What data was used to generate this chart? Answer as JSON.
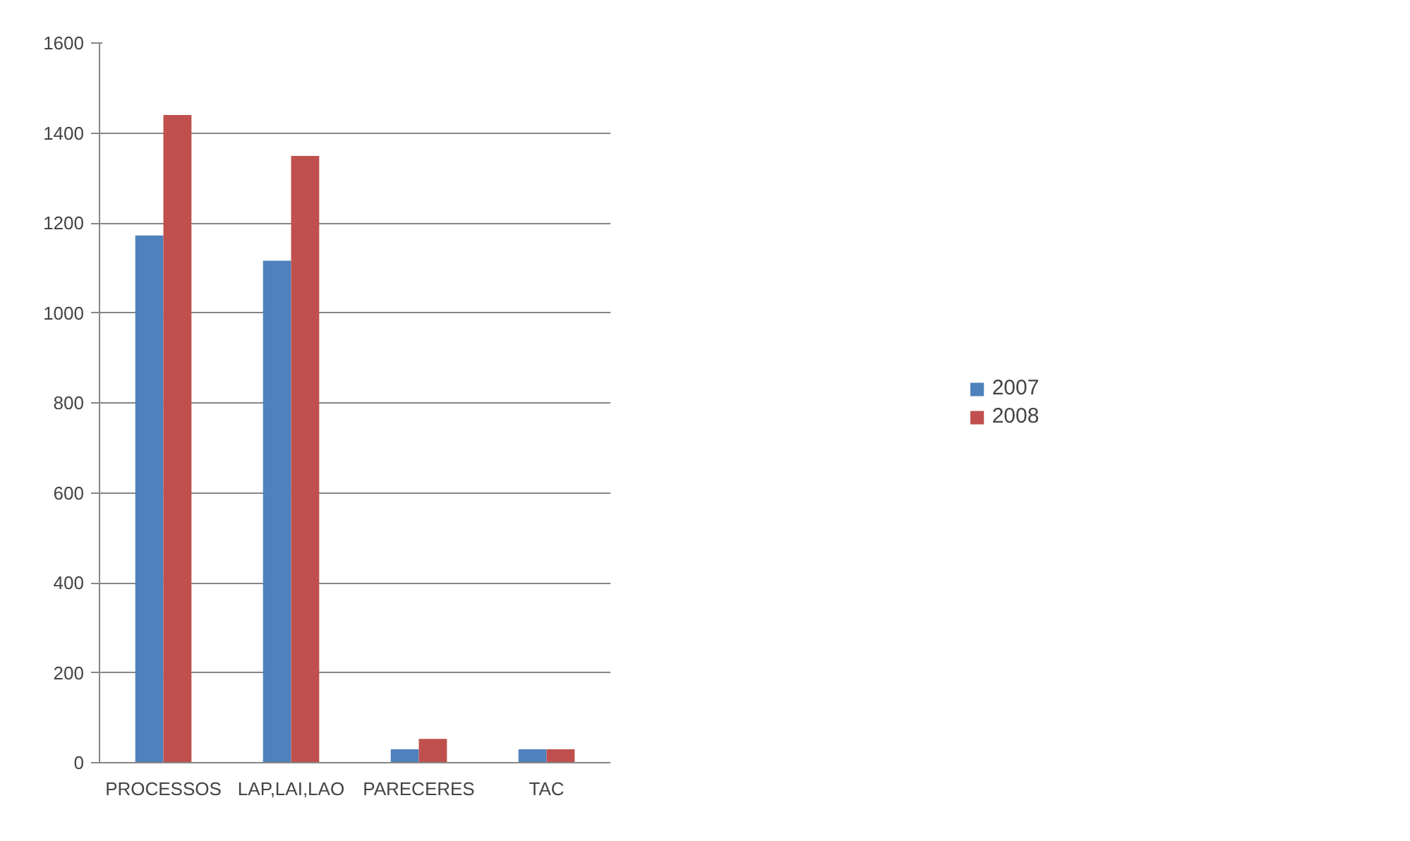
{
  "chart_data": {
    "type": "bar",
    "categories": [
      "PROCESSOS",
      "LAP,LAI,LAO",
      "PARECERES",
      "TAC"
    ],
    "series": [
      {
        "name": "2007",
        "color": "#4f81bd",
        "values": [
          1172,
          1116,
          30,
          30
        ]
      },
      {
        "name": "2008",
        "color": "#c0504d",
        "values": [
          1440,
          1349,
          53,
          30
        ]
      }
    ],
    "ylim": [
      0,
      1600
    ],
    "yticks": [
      0,
      200,
      400,
      600,
      800,
      1000,
      1200,
      1400,
      1600
    ],
    "grid": "y",
    "legend": "right"
  }
}
